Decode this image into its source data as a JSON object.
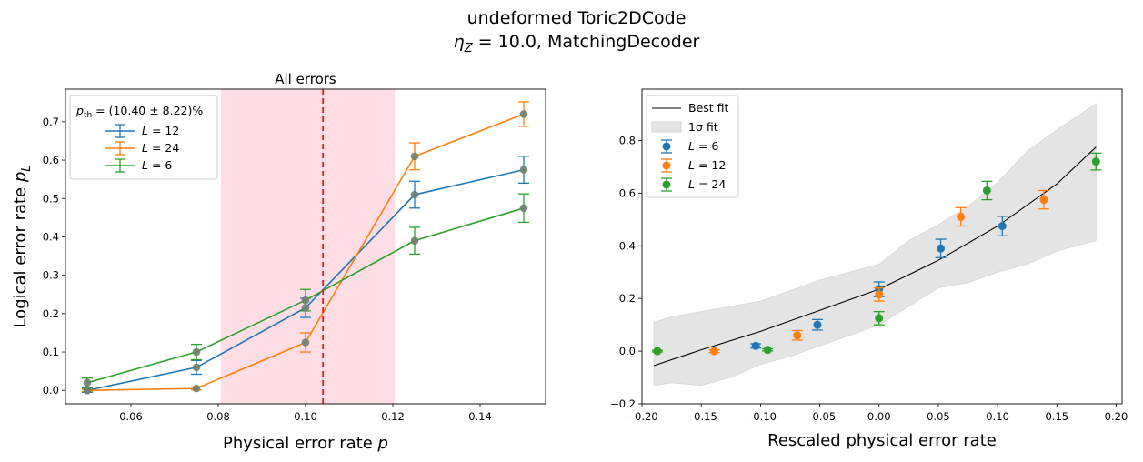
{
  "figure": {
    "suptitle_line1": "undeformed Toric2DCode",
    "suptitle_line2": "η_Z = 10.0, MatchingDecoder"
  },
  "colors": {
    "blue": "#1f77b4",
    "orange": "#ff7f0e",
    "green": "#2ca02c",
    "threshold": "#e31a1c",
    "band": "#ffdde4",
    "fitband": "#e4e4e4"
  },
  "chart_data": [
    {
      "type": "line",
      "title": "All errors",
      "xlabel": "Physical error rate p",
      "ylabel": "Logical error rate p_L",
      "xlim": [
        0.045,
        0.155
      ],
      "ylim": [
        -0.035,
        0.785
      ],
      "xticks": [
        0.06,
        0.08,
        0.1,
        0.12,
        0.14
      ],
      "xtick_labels": [
        "0.06",
        "0.08",
        "0.10",
        "0.12",
        "0.14"
      ],
      "yticks": [
        0.0,
        0.1,
        0.2,
        0.3,
        0.4,
        0.5,
        0.6,
        0.7
      ],
      "ytick_labels": [
        "0.0",
        "0.1",
        "0.2",
        "0.3",
        "0.4",
        "0.5",
        "0.6",
        "0.7"
      ],
      "threshold": {
        "label": "p_th = (10.40 ± 8.22)%",
        "value": 0.104,
        "band": [
          0.0806,
          0.1205
        ]
      },
      "legend_position": "upper-left",
      "x": [
        0.05,
        0.075,
        0.1,
        0.125,
        0.15
      ],
      "series": [
        {
          "name": "L = 12",
          "color": "#1f77b4",
          "values": [
            0.0,
            0.06,
            0.215,
            0.51,
            0.575
          ],
          "errors": [
            0.005,
            0.018,
            0.025,
            0.035,
            0.035
          ]
        },
        {
          "name": "L = 24",
          "color": "#ff7f0e",
          "values": [
            0.0,
            0.005,
            0.125,
            0.61,
            0.72
          ],
          "errors": [
            0.003,
            0.004,
            0.025,
            0.035,
            0.032
          ]
        },
        {
          "name": "L = 6",
          "color": "#2ca02c",
          "values": [
            0.02,
            0.1,
            0.235,
            0.39,
            0.475
          ],
          "errors": [
            0.012,
            0.02,
            0.028,
            0.035,
            0.037
          ]
        }
      ]
    },
    {
      "type": "scatter",
      "title": "",
      "xlabel": "Rescaled physical error rate",
      "ylabel": "",
      "xlim": [
        -0.2,
        0.205
      ],
      "ylim": [
        -0.2,
        0.995
      ],
      "xticks": [
        -0.2,
        -0.15,
        -0.1,
        -0.05,
        0.0,
        0.05,
        0.1,
        0.15,
        0.2
      ],
      "xtick_labels": [
        "−0.20",
        "−0.15",
        "−0.10",
        "−0.05",
        "0.00",
        "0.05",
        "0.10",
        "0.15",
        "0.20"
      ],
      "yticks": [
        -0.2,
        0.0,
        0.2,
        0.4,
        0.6,
        0.8
      ],
      "ytick_labels": [
        "−0.2",
        "0.0",
        "0.2",
        "0.4",
        "0.6",
        "0.8"
      ],
      "legend_position": "upper-left",
      "fit": {
        "name": "Best fit",
        "band_name": "1σ fit",
        "x": [
          -0.19,
          -0.15,
          -0.1,
          -0.05,
          0.0,
          0.05,
          0.1,
          0.15,
          0.183
        ],
        "y": [
          -0.055,
          0.005,
          0.075,
          0.155,
          0.235,
          0.345,
          0.475,
          0.635,
          0.775
        ],
        "band_x": [
          -0.19,
          -0.175,
          -0.15,
          -0.125,
          -0.1,
          -0.075,
          -0.05,
          -0.025,
          0.0,
          0.025,
          0.05,
          0.075,
          0.1,
          0.125,
          0.15,
          0.183
        ],
        "band_upper": [
          0.11,
          0.13,
          0.15,
          0.17,
          0.19,
          0.23,
          0.27,
          0.3,
          0.33,
          0.42,
          0.48,
          0.55,
          0.64,
          0.76,
          0.84,
          0.94
        ],
        "band_lower": [
          -0.13,
          -0.12,
          -0.13,
          -0.1,
          -0.05,
          -0.02,
          0.02,
          0.06,
          0.1,
          0.17,
          0.24,
          0.26,
          0.3,
          0.33,
          0.38,
          0.42
        ]
      },
      "series": [
        {
          "name": "L = 6",
          "color": "#1f77b4",
          "x": [
            -0.104,
            -0.052,
            0.0,
            0.052,
            0.104
          ],
          "values": [
            0.02,
            0.1,
            0.235,
            0.39,
            0.475
          ],
          "errors": [
            0.008,
            0.02,
            0.028,
            0.035,
            0.037
          ]
        },
        {
          "name": "L = 12",
          "color": "#ff7f0e",
          "x": [
            -0.139,
            -0.069,
            0.0,
            0.069,
            0.139
          ],
          "values": [
            0.0,
            0.06,
            0.215,
            0.51,
            0.575
          ],
          "errors": [
            0.005,
            0.018,
            0.025,
            0.035,
            0.035
          ]
        },
        {
          "name": "L = 24",
          "color": "#2ca02c",
          "x": [
            -0.187,
            -0.094,
            0.0,
            0.091,
            0.183
          ],
          "values": [
            0.0,
            0.005,
            0.125,
            0.61,
            0.72
          ],
          "errors": [
            0.003,
            0.004,
            0.025,
            0.035,
            0.032
          ]
        }
      ]
    }
  ]
}
